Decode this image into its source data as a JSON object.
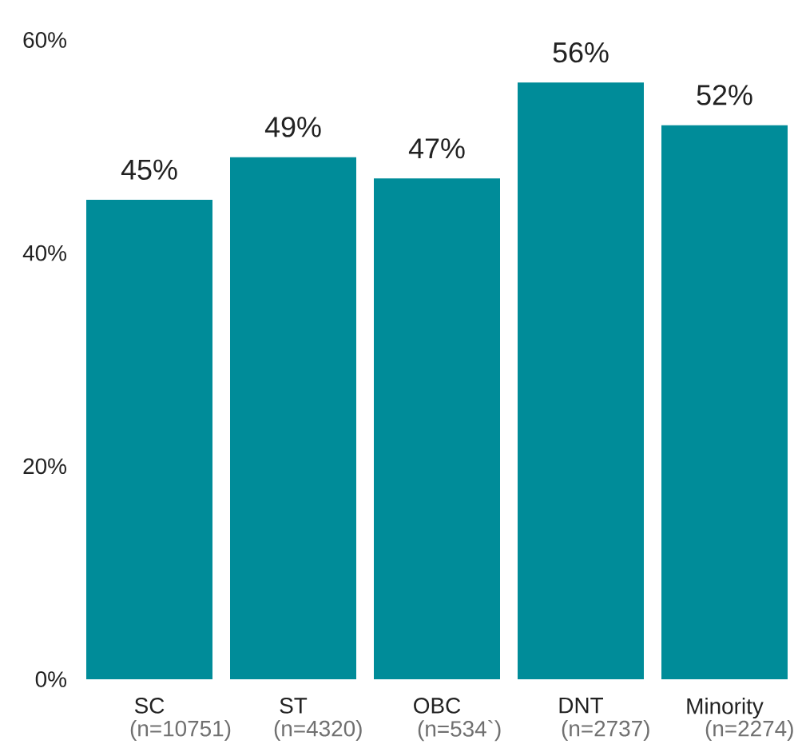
{
  "chart_data": {
    "type": "bar",
    "categories": [
      "SC",
      "ST",
      "OBC",
      "DNT",
      "Minority"
    ],
    "values": [
      45,
      49,
      47,
      56,
      52
    ],
    "color": "#008c99",
    "value_labels": [
      "45%",
      "49%",
      "47%",
      "56%",
      "52%"
    ],
    "ylim": [
      0,
      60
    ],
    "yticks": [
      {
        "value": 0,
        "label": "0%"
      },
      {
        "value": 20,
        "label": "20%"
      },
      {
        "value": 40,
        "label": "40%"
      },
      {
        "value": 60,
        "label": "60%"
      }
    ],
    "annotations": [
      "(n=10751)",
      "(n=4320)",
      "(n=534`)",
      "(n=2737)",
      "(n=2274)"
    ]
  }
}
